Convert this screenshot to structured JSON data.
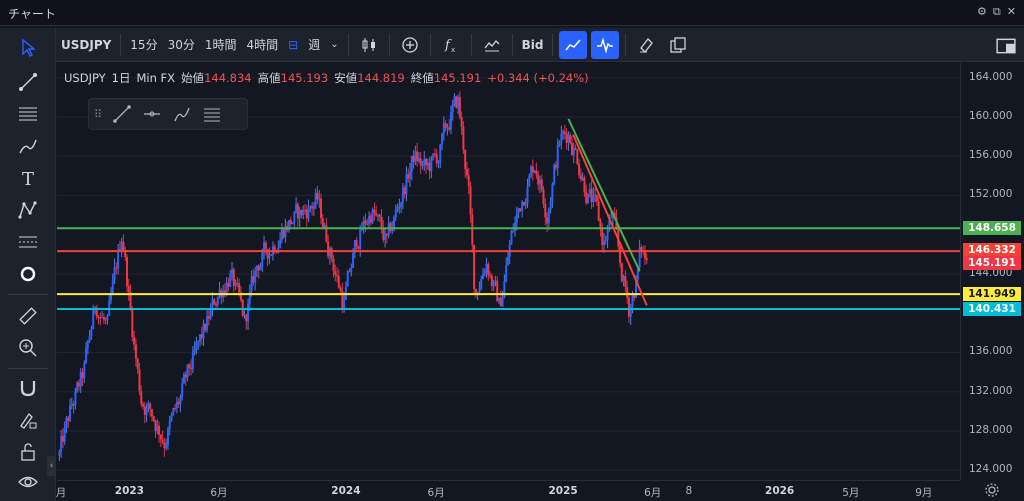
{
  "window": {
    "title": "チャート"
  },
  "toolbar": {
    "symbol": "USDJPY",
    "intervals": [
      "15分",
      "30分",
      "1時間",
      "4時間"
    ],
    "range_label": "週",
    "price_type": "Bid"
  },
  "legend": {
    "symbol": "USDJPY",
    "interval": "1日",
    "source": "Min FX",
    "open_label": "始値",
    "open": "144.834",
    "high_label": "高値",
    "high": "145.193",
    "low_label": "安値",
    "low": "144.819",
    "close_label": "終値",
    "close": "145.191",
    "change": "+0.344 (+0.24%)"
  },
  "price_axis": {
    "ticks": [
      "164.000",
      "160.000",
      "156.000",
      "152.000",
      "144.000",
      "136.000",
      "132.000",
      "128.000",
      "124.000"
    ]
  },
  "price_labels": [
    {
      "value": "148.658",
      "color": "#4caf50",
      "text_color": "#ffffff"
    },
    {
      "value": "146.332",
      "color": "#f44336",
      "text_color": "#ffffff"
    },
    {
      "value": "145.191",
      "color": "#f23645",
      "text_color": "#ffffff"
    },
    {
      "value": "141.949",
      "color": "#ffeb3b",
      "text_color": "#131722"
    },
    {
      "value": "140.431",
      "color": "#00bcd4",
      "text_color": "#ffffff"
    }
  ],
  "time_axis": {
    "ticks": [
      {
        "label": "月",
        "bold": false
      },
      {
        "label": "2023",
        "bold": true
      },
      {
        "label": "6月",
        "bold": false
      },
      {
        "label": "2024",
        "bold": true
      },
      {
        "label": "6月",
        "bold": false
      },
      {
        "label": "2025",
        "bold": true
      },
      {
        "label": "6月",
        "bold": false
      },
      {
        "label": "8",
        "bold": false
      },
      {
        "label": "2026",
        "bold": true
      },
      {
        "label": "5月",
        "bold": false
      },
      {
        "label": "9月",
        "bold": false
      }
    ]
  },
  "chart_data": {
    "type": "candlestick",
    "ylim": [
      123,
      165.5
    ],
    "horizontal_lines": [
      {
        "value": 148.658,
        "color": "#4caf50"
      },
      {
        "value": 146.332,
        "color": "#f44336"
      },
      {
        "value": 141.949,
        "color": "#ffeb3b"
      },
      {
        "value": 140.431,
        "color": "#00bcd4"
      }
    ],
    "trend_lines": [
      {
        "color": "#4caf50",
        "from": [
          "2025-01-10",
          159.8
        ],
        "to": [
          "2025-05-10",
          144.3
        ]
      },
      {
        "color": "#f44336",
        "from": [
          "2025-01-18",
          158.2
        ],
        "to": [
          "2025-05-22",
          140.8
        ]
      }
    ],
    "price_path": [
      [
        "2022-09-05",
        125.5
      ],
      [
        "2022-09-25",
        130.2
      ],
      [
        "2022-10-15",
        133.5
      ],
      [
        "2022-11-05",
        141.0
      ],
      [
        "2022-11-25",
        138.5
      ],
      [
        "2022-12-20",
        148.5
      ],
      [
        "2023-01-05",
        139.0
      ],
      [
        "2023-01-20",
        131.5
      ],
      [
        "2023-02-10",
        129.5
      ],
      [
        "2023-03-01",
        127.2
      ],
      [
        "2023-03-24",
        130.5
      ],
      [
        "2023-04-15",
        134.5
      ],
      [
        "2023-05-10",
        138.5
      ],
      [
        "2023-05-30",
        142.0
      ],
      [
        "2023-06-20",
        144.0
      ],
      [
        "2023-07-14",
        139.0
      ],
      [
        "2023-08-05",
        145.0
      ],
      [
        "2023-08-25",
        146.5
      ],
      [
        "2023-09-20",
        149.0
      ],
      [
        "2023-10-15",
        150.0
      ],
      [
        "2023-11-13",
        151.5
      ],
      [
        "2023-12-05",
        146.5
      ],
      [
        "2023-12-28",
        141.0
      ],
      [
        "2024-01-20",
        147.5
      ],
      [
        "2024-02-14",
        150.5
      ],
      [
        "2024-03-10",
        147.0
      ],
      [
        "2024-04-01",
        151.5
      ],
      [
        "2024-04-25",
        156.0
      ],
      [
        "2024-05-15",
        154.5
      ],
      [
        "2024-06-05",
        156.0
      ],
      [
        "2024-06-25",
        160.0
      ],
      [
        "2024-07-08",
        161.5
      ],
      [
        "2024-07-25",
        153.0
      ],
      [
        "2024-08-05",
        142.0
      ],
      [
        "2024-08-25",
        145.5
      ],
      [
        "2024-09-16",
        140.5
      ],
      [
        "2024-10-05",
        147.5
      ],
      [
        "2024-10-25",
        152.0
      ],
      [
        "2024-11-15",
        155.5
      ],
      [
        "2024-12-05",
        150.5
      ],
      [
        "2024-12-26",
        157.5
      ],
      [
        "2025-01-10",
        158.5
      ],
      [
        "2025-01-25",
        156.0
      ],
      [
        "2025-02-10",
        152.5
      ],
      [
        "2025-02-25",
        150.5
      ],
      [
        "2025-03-10",
        147.0
      ],
      [
        "2025-03-25",
        150.0
      ],
      [
        "2025-04-05",
        145.5
      ],
      [
        "2025-04-22",
        140.5
      ],
      [
        "2025-05-05",
        143.5
      ],
      [
        "2025-05-12",
        146.5
      ],
      [
        "2025-05-22",
        145.2
      ]
    ]
  }
}
